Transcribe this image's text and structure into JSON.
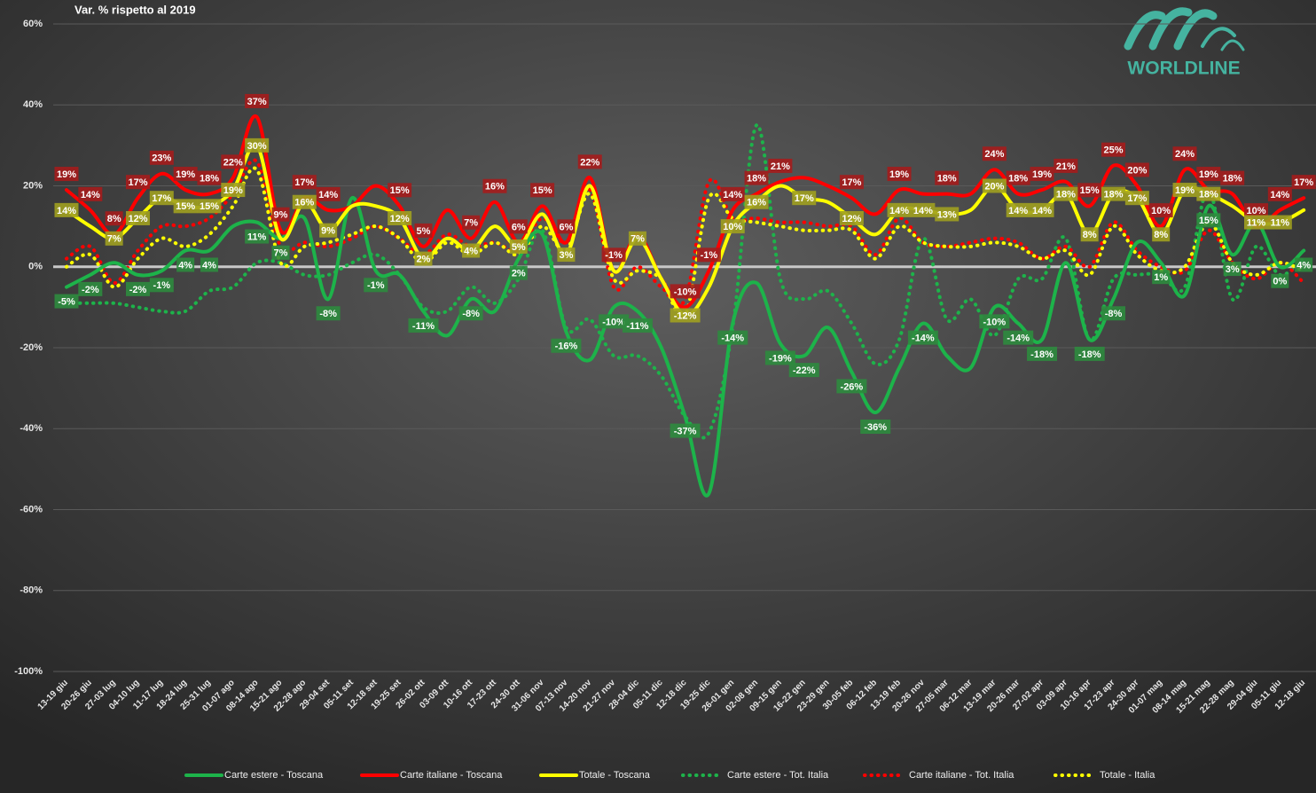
{
  "chart_data": {
    "type": "line",
    "title": "Var. % rispetto al 2019",
    "logo": "WORLDLINE",
    "categories": [
      "13-19 giu",
      "20-26 giu",
      "27-03 lug",
      "04-10 lug",
      "11-17 lug",
      "18-24 lug",
      "25-31 lug",
      "01-07 ago",
      "08-14 ago",
      "15-21 ago",
      "22-28 ago",
      "29-04 set",
      "05-11 set",
      "12-18 set",
      "19-25 set",
      "26-02 ott",
      "03-09 ott",
      "10-16 ott",
      "17-23 ott",
      "24-30 ott",
      "31-06 nov",
      "07-13 nov",
      "14-20 nov",
      "21-27 nov",
      "28-04 dic",
      "05-11 dic",
      "12-18 dic",
      "19-25 dic",
      "26-01 gen",
      "02-08 gen",
      "09-15 gen",
      "16-22 gen",
      "23-29 gen",
      "30-05 feb",
      "06-12 feb",
      "13-19 feb",
      "20-26 nov",
      "27-05 mar",
      "06-12 mar",
      "13-19 mar",
      "20-26 mar",
      "27-02 apr",
      "03-09 apr",
      "10-16 apr",
      "17-23 apr",
      "24-30 apr",
      "01-07 mag",
      "08-14 mag",
      "15-21 mag",
      "22-28 mag",
      "29-04 giu",
      "05-11 giu",
      "12-18 giu"
    ],
    "ylim": [
      -100,
      60
    ],
    "yticks": [
      {
        "value": 60,
        "label": "60%"
      },
      {
        "value": 40,
        "label": "40%"
      },
      {
        "value": 20,
        "label": "20%"
      },
      {
        "value": 0,
        "label": "0%"
      },
      {
        "value": -20,
        "label": "-20%"
      },
      {
        "value": -40,
        "label": "-40%"
      },
      {
        "value": -60,
        "label": "-60%"
      },
      {
        "value": -80,
        "label": "-80%"
      },
      {
        "value": -100,
        "label": "-100%"
      }
    ],
    "grid": true,
    "legend": "bottom",
    "series": [
      {
        "name": "Carte estere - Toscana",
        "color": "#1db34a",
        "style": "solid",
        "label_color": "#2e8b3e",
        "values": [
          -5,
          -2,
          1,
          -2,
          -1,
          4,
          4,
          10,
          11,
          7,
          12,
          -8,
          17,
          -1,
          -2,
          -11,
          -17,
          -8,
          -11,
          2,
          8,
          -16,
          -23,
          -10,
          -11,
          -20,
          -37,
          -56,
          -14,
          -4,
          -19,
          -22,
          -15,
          -26,
          -36,
          -25,
          -14,
          -22,
          -25,
          -10,
          -14,
          -18,
          1,
          -18,
          -8,
          6,
          1,
          -7,
          15,
          3,
          11,
          0,
          4
        ],
        "value_labels": [
          "-5%",
          "-2%",
          null,
          "-2%",
          "-1%",
          "4%",
          "4%",
          null,
          "11%",
          "7%",
          null,
          "-8%",
          null,
          "-1%",
          null,
          "-11%",
          null,
          "-8%",
          null,
          "2%",
          null,
          "-16%",
          null,
          "-10%",
          "-11%",
          null,
          "-37%",
          null,
          "-14%",
          null,
          "-19%",
          "-22%",
          null,
          "-26%",
          "-36%",
          null,
          "-14%",
          null,
          null,
          "-10%",
          "-14%",
          "-18%",
          null,
          "-18%",
          "-8%",
          null,
          "1%",
          null,
          "15%",
          "3%",
          null,
          "0%",
          "4%"
        ]
      },
      {
        "name": "Carte italiane - Toscana",
        "color": "#ff0000",
        "style": "solid",
        "label_color": "#a51c1c",
        "values": [
          19,
          14,
          8,
          17,
          23,
          19,
          18,
          22,
          37,
          9,
          17,
          14,
          15,
          20,
          15,
          5,
          14,
          7,
          16,
          6,
          15,
          6,
          22,
          -1,
          8,
          -3,
          -10,
          -1,
          14,
          18,
          21,
          22,
          20,
          17,
          13,
          19,
          18,
          18,
          18,
          24,
          18,
          19,
          21,
          15,
          25,
          20,
          10,
          24,
          19,
          18,
          10,
          14,
          17
        ],
        "value_labels": [
          "19%",
          "14%",
          "8%",
          "17%",
          "23%",
          "19%",
          "18%",
          "22%",
          "37%",
          "9%",
          "17%",
          "14%",
          null,
          null,
          "15%",
          "5%",
          null,
          "7%",
          "16%",
          "6%",
          "15%",
          "6%",
          "22%",
          "-1%",
          null,
          null,
          "-10%",
          "-1%",
          "14%",
          "18%",
          "21%",
          null,
          null,
          "17%",
          null,
          "19%",
          null,
          "18%",
          null,
          "24%",
          "18%",
          "19%",
          "21%",
          "15%",
          "25%",
          "20%",
          "10%",
          "24%",
          "19%",
          "18%",
          "10%",
          "14%",
          "17%"
        ]
      },
      {
        "name": "Totale - Toscana",
        "color": "#ffff00",
        "style": "solid",
        "label_color": "#a0a020",
        "values": [
          14,
          10,
          7,
          12,
          17,
          15,
          15,
          19,
          30,
          7,
          16,
          9,
          15,
          15,
          12,
          2,
          7,
          4,
          10,
          5,
          13,
          3,
          20,
          -1,
          7,
          -3,
          -12,
          -5,
          10,
          16,
          20,
          17,
          16,
          12,
          8,
          14,
          14,
          13,
          14,
          20,
          14,
          14,
          18,
          8,
          18,
          17,
          8,
          19,
          18,
          15,
          11,
          11,
          14
        ],
        "value_labels": [
          "14%",
          null,
          "7%",
          "12%",
          "17%",
          "15%",
          "15%",
          "19%",
          "30%",
          null,
          "16%",
          "9%",
          null,
          null,
          "12%",
          "2%",
          null,
          "4%",
          null,
          "5%",
          null,
          "3%",
          null,
          null,
          "7%",
          null,
          "-12%",
          null,
          "10%",
          "16%",
          null,
          "17%",
          null,
          "12%",
          null,
          "14%",
          "14%",
          "13%",
          null,
          "20%",
          "14%",
          "14%",
          "18%",
          "8%",
          "18%",
          "17%",
          "8%",
          "19%",
          "18%",
          null,
          "11%",
          "11%",
          null
        ]
      },
      {
        "name": "Carte estere - Tot. Italia",
        "color": "#1db34a",
        "style": "dotted",
        "values": [
          -9,
          -9,
          -9,
          -10,
          -11,
          -11,
          -6,
          -5,
          1,
          1,
          -2,
          -2,
          1,
          3,
          -2,
          -10,
          -11,
          -5,
          -9,
          -3,
          9,
          -15,
          -13,
          -22,
          -22,
          -27,
          -37,
          -41,
          -15,
          35,
          -3,
          -8,
          -6,
          -14,
          -24,
          -18,
          7,
          -13,
          -8,
          -17,
          -3,
          -3,
          7,
          -18,
          -3,
          -2,
          -2,
          -5,
          19,
          -8,
          5,
          -2,
          2
        ]
      },
      {
        "name": "Carte italiane - Tot. Italia",
        "color": "#ff0000",
        "style": "dotted",
        "values": [
          2,
          5,
          -4,
          4,
          10,
          10,
          12,
          18,
          26,
          5,
          6,
          5,
          7,
          10,
          7,
          3,
          8,
          5,
          6,
          4,
          12,
          6,
          19,
          -5,
          0,
          -5,
          -8,
          21,
          12,
          12,
          11,
          11,
          10,
          10,
          3,
          12,
          6,
          5,
          6,
          7,
          6,
          2,
          5,
          0,
          11,
          4,
          0,
          -1,
          9,
          1,
          -3,
          1,
          -4
        ]
      },
      {
        "name": "Totale - Italia",
        "color": "#ffff00",
        "style": "dotted",
        "values": [
          0,
          3,
          -5,
          2,
          7,
          5,
          8,
          15,
          24,
          1,
          5,
          6,
          8,
          10,
          7,
          1,
          6,
          3,
          6,
          3,
          10,
          4,
          18,
          -3,
          -1,
          -3,
          -12,
          17,
          12,
          11,
          10,
          9,
          9,
          9,
          2,
          10,
          6,
          5,
          5,
          6,
          5,
          2,
          4,
          -2,
          10,
          3,
          -1,
          0,
          11,
          1,
          -2,
          1,
          -1
        ]
      }
    ]
  }
}
